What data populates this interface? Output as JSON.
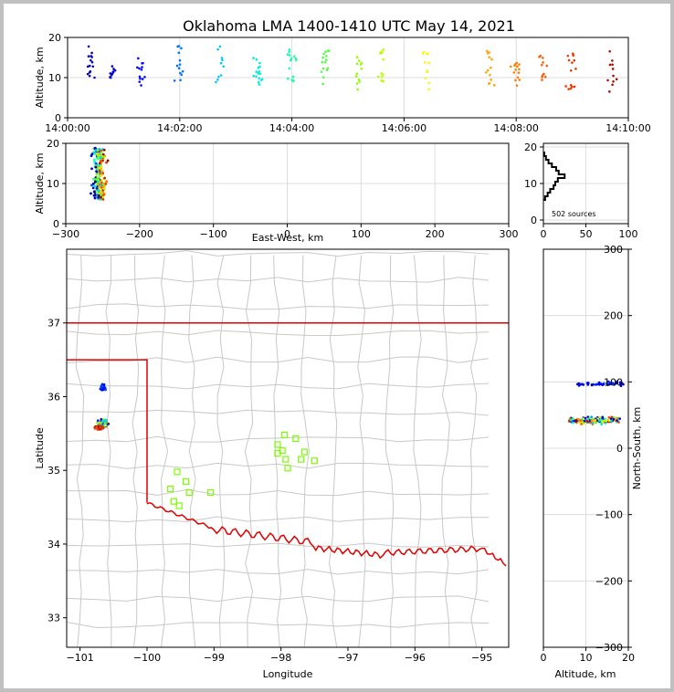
{
  "title": "Oklahoma LMA 1400-1410 UTC May 14, 2021",
  "sources_label": "502 sources",
  "panels": {
    "time_height": {
      "ylabel": "Altitude, km",
      "xticks": [
        "14:00:00",
        "14:02:00",
        "14:04:00",
        "14:06:00",
        "14:08:00",
        "14:10:00"
      ],
      "yticks": [
        "0",
        "10",
        "20"
      ]
    },
    "ew_height": {
      "xlabel": "East-West, km",
      "ylabel": "Altitude, km",
      "xticks": [
        "−300",
        "−200",
        "−100",
        "0",
        "100",
        "200",
        "300"
      ],
      "yticks": [
        "0",
        "10",
        "20"
      ]
    },
    "histogram": {
      "xticks": [
        "0",
        "50",
        "100"
      ],
      "yticks": [
        "0",
        "10",
        "20"
      ]
    },
    "map": {
      "xlabel": "Longitude",
      "ylabel": "Latitude",
      "xticks": [
        "−101",
        "−100",
        "−99",
        "−98",
        "−97",
        "−96",
        "−95"
      ],
      "yticks": [
        "33",
        "34",
        "35",
        "36",
        "37"
      ]
    },
    "ns_height": {
      "xlabel": "Altitude, km",
      "ylabel": "North-South, km",
      "xticks": [
        "0",
        "10",
        "20"
      ],
      "yticks": [
        "−300",
        "−200",
        "−100",
        "0",
        "100",
        "200",
        "300"
      ]
    }
  },
  "colors": {
    "state_border": "#e00000",
    "county_lines": "#c8c8c8",
    "station_marker": "#7cfc00",
    "gradient": [
      "#00008b",
      "#0000ff",
      "#00bfff",
      "#00ffcc",
      "#7cfc00",
      "#ffff00",
      "#ffa500",
      "#ff4500",
      "#8b0000"
    ]
  },
  "chart_data": {
    "type": "scatter",
    "description_fields": [
      "time_utc",
      "altitude_km",
      "east_west_km",
      "north_south_km"
    ],
    "source_count": 502,
    "time_range": [
      "14:00:00",
      "14:10:00"
    ],
    "altitude_range_km": [
      0,
      20
    ],
    "east_west_range_km": [
      -300,
      300
    ],
    "north_south_range_km": [
      -300,
      300
    ],
    "longitude_range": [
      -101.2,
      -94.6
    ],
    "latitude_range": [
      32.6,
      38.0
    ],
    "grid": true,
    "time_clusters": [
      {
        "time_min": 0.4,
        "alt_min": 9,
        "alt_max": 18
      },
      {
        "time_min": 0.8,
        "alt_min": 9,
        "alt_max": 13
      },
      {
        "time_min": 1.3,
        "alt_min": 8,
        "alt_max": 15
      },
      {
        "time_min": 2.0,
        "alt_min": 8,
        "alt_max": 18
      },
      {
        "time_min": 2.7,
        "alt_min": 7,
        "alt_max": 18
      },
      {
        "time_min": 3.4,
        "alt_min": 8,
        "alt_max": 15
      },
      {
        "time_min": 4.0,
        "alt_min": 9,
        "alt_max": 17
      },
      {
        "time_min": 4.6,
        "alt_min": 8,
        "alt_max": 17
      },
      {
        "time_min": 5.2,
        "alt_min": 7,
        "alt_max": 16
      },
      {
        "time_min": 5.6,
        "alt_min": 9,
        "alt_max": 18
      },
      {
        "time_min": 6.4,
        "alt_min": 7,
        "alt_max": 17
      },
      {
        "time_min": 7.5,
        "alt_min": 8,
        "alt_max": 17
      },
      {
        "time_min": 8.0,
        "alt_min": 8,
        "alt_max": 14
      },
      {
        "time_min": 8.5,
        "alt_min": 9,
        "alt_max": 16
      },
      {
        "time_min": 9.0,
        "alt_min": 7,
        "alt_max": 17
      },
      {
        "time_min": 9.7,
        "alt_min": 6,
        "alt_max": 17
      }
    ],
    "altitude_histogram": [
      {
        "alt_km": 6,
        "count": 2
      },
      {
        "alt_km": 7,
        "count": 5
      },
      {
        "alt_km": 8,
        "count": 8
      },
      {
        "alt_km": 9,
        "count": 12
      },
      {
        "alt_km": 10,
        "count": 14
      },
      {
        "alt_km": 11,
        "count": 17
      },
      {
        "alt_km": 12,
        "count": 25
      },
      {
        "alt_km": 13,
        "count": 18
      },
      {
        "alt_km": 14,
        "count": 15
      },
      {
        "alt_km": 15,
        "count": 10
      },
      {
        "alt_km": 16,
        "count": 6
      },
      {
        "alt_km": 17,
        "count": 3
      },
      {
        "alt_km": 18,
        "count": 1
      }
    ],
    "stations_lonlat": [
      [
        -97.95,
        35.48
      ],
      [
        -97.78,
        35.43
      ],
      [
        -98.05,
        35.35
      ],
      [
        -97.98,
        35.27
      ],
      [
        -97.65,
        35.25
      ],
      [
        -98.05,
        35.23
      ],
      [
        -97.7,
        35.15
      ],
      [
        -97.93,
        35.15
      ],
      [
        -97.5,
        35.13
      ],
      [
        -97.9,
        35.03
      ],
      [
        -99.55,
        34.98
      ],
      [
        -99.42,
        34.85
      ],
      [
        -99.65,
        34.75
      ],
      [
        -99.37,
        34.7
      ],
      [
        -99.05,
        34.7
      ],
      [
        -99.6,
        34.58
      ],
      [
        -99.52,
        34.52
      ]
    ],
    "source_groups_lonlat": [
      {
        "lon": -100.66,
        "lat": 36.12,
        "lon_spread": 0.05,
        "lat_spread": 0.06,
        "level": "early"
      },
      {
        "lon": -100.66,
        "lat": 35.64,
        "lon_spread": 0.12,
        "lat_spread": 0.08,
        "level": "mixed"
      },
      {
        "lon": -100.72,
        "lat": 35.58,
        "lon_spread": 0.08,
        "lat_spread": 0.03,
        "level": "late"
      }
    ],
    "north_south_groups": [
      {
        "ns_km": 97,
        "ns_spread": 8,
        "alt_min": 8,
        "alt_max": 19,
        "level": "early"
      },
      {
        "ns_km": 42,
        "ns_spread": 12,
        "alt_min": 6,
        "alt_max": 18,
        "level": "mixed"
      }
    ],
    "east_west_group": {
      "ew_km": -255,
      "ew_spread": 15,
      "alt_min": 6,
      "alt_max": 19
    }
  }
}
